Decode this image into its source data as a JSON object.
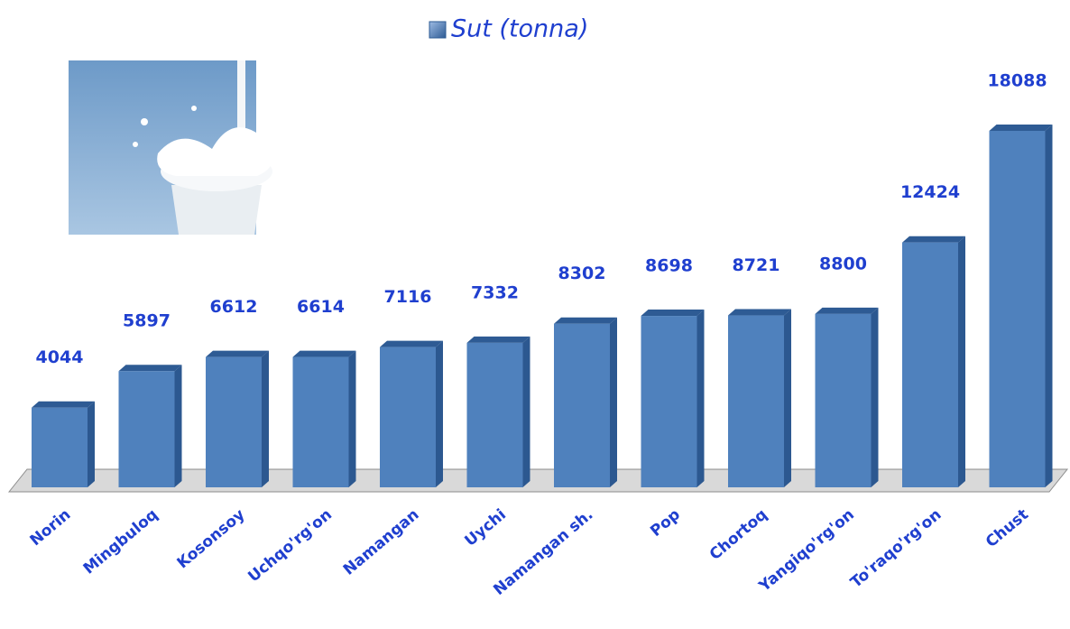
{
  "chart_data": {
    "type": "bar",
    "categories": [
      "Norin",
      "Mingbuloq",
      "Kosonsoy",
      "Uchqo'rg'on",
      "Namangan",
      "Uychi",
      "Namangan sh.",
      "Pop",
      "Chortoq",
      "Yangiqo'rg'on",
      "To'raqo'rg'on",
      "Chust"
    ],
    "series": [
      {
        "name": "Sut (tonna)",
        "color": "#4f81bd",
        "values": [
          4044,
          5897,
          6612,
          6614,
          7116,
          7332,
          8302,
          8698,
          8721,
          8800,
          12424,
          18088
        ]
      }
    ]
  }
}
